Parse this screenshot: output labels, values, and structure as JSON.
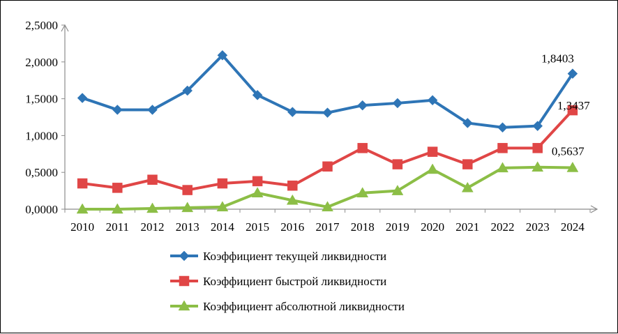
{
  "chart_data": {
    "type": "line",
    "title": "",
    "xlabel": "",
    "ylabel": "",
    "ylim": [
      0,
      2.5
    ],
    "yticks": [
      "0,0000",
      "0,5000",
      "1,0000",
      "1,5000",
      "2,0000",
      "2,5000"
    ],
    "categories": [
      "2010",
      "2011",
      "2012",
      "2013",
      "2014",
      "2015",
      "2016",
      "2017",
      "2018",
      "2019",
      "2020",
      "2021",
      "2022",
      "2023",
      "2024"
    ],
    "grid": false,
    "legend_position": "bottom",
    "series": [
      {
        "name": "Коэффициент текущей ликвидности",
        "color": "#2E75B6",
        "marker": "diamond",
        "values": [
          1.51,
          1.35,
          1.35,
          1.61,
          2.09,
          1.55,
          1.32,
          1.31,
          1.41,
          1.44,
          1.48,
          1.17,
          1.11,
          1.13,
          1.8403
        ],
        "end_label": "1,8403"
      },
      {
        "name": "Коэффициент быстрой ликвидности",
        "color": "#E04646",
        "marker": "square",
        "values": [
          0.35,
          0.29,
          0.4,
          0.26,
          0.35,
          0.38,
          0.32,
          0.58,
          0.83,
          0.61,
          0.78,
          0.61,
          0.83,
          0.83,
          1.3437
        ],
        "end_label": "1,3437"
      },
      {
        "name": "Коэффициент абсолютной ликвидности",
        "color": "#8CBE46",
        "marker": "triangle",
        "values": [
          0.0,
          0.0,
          0.01,
          0.02,
          0.03,
          0.22,
          0.12,
          0.03,
          0.22,
          0.25,
          0.54,
          0.29,
          0.56,
          0.57,
          0.5637
        ],
        "end_label": "0,5637"
      }
    ]
  }
}
